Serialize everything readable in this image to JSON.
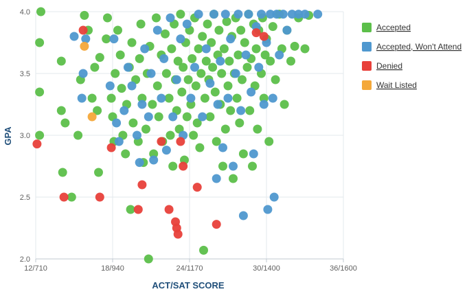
{
  "chart_data": {
    "type": "scatter",
    "title": "",
    "xlabel": "ACT/SAT SCORE",
    "ylabel": "GPA",
    "x_ticks": [
      "12/710",
      "18/940",
      "24/1170",
      "30/1400",
      "36/1600"
    ],
    "x_tick_values": [
      12,
      18,
      24,
      30,
      36
    ],
    "xlim": [
      12,
      36
    ],
    "y_ticks": [
      "2.0",
      "2.5",
      "3.0",
      "3.5",
      "4.0"
    ],
    "y_tick_values": [
      2.0,
      2.5,
      3.0,
      3.5,
      4.0
    ],
    "ylim": [
      2.0,
      4.0
    ],
    "grid": true,
    "legend_position": "right",
    "series": [
      {
        "name": "Accepted",
        "color": "#5cbf4a",
        "points": [
          [
            12.3,
            3.75
          ],
          [
            12.3,
            3.35
          ],
          [
            12.3,
            3.0
          ],
          [
            12.4,
            4.0
          ],
          [
            14.0,
            3.6
          ],
          [
            14.0,
            3.2
          ],
          [
            14.1,
            2.7
          ],
          [
            14.3,
            3.1
          ],
          [
            14.8,
            2.5
          ],
          [
            15.3,
            3.0
          ],
          [
            15.5,
            3.45
          ],
          [
            15.8,
            3.97
          ],
          [
            16.1,
            3.85
          ],
          [
            16.4,
            3.3
          ],
          [
            16.6,
            3.55
          ],
          [
            16.8,
            3.2
          ],
          [
            16.9,
            2.7
          ],
          [
            17.0,
            3.63
          ],
          [
            17.5,
            3.78
          ],
          [
            17.6,
            3.95
          ],
          [
            17.9,
            3.3
          ],
          [
            18.0,
            3.15
          ],
          [
            18.1,
            2.95
          ],
          [
            18.2,
            3.5
          ],
          [
            18.4,
            3.85
          ],
          [
            18.6,
            3.65
          ],
          [
            18.7,
            3.38
          ],
          [
            18.8,
            3.0
          ],
          [
            19.0,
            2.85
          ],
          [
            19.1,
            3.25
          ],
          [
            19.3,
            3.55
          ],
          [
            19.4,
            2.4
          ],
          [
            19.5,
            3.75
          ],
          [
            19.6,
            3.1
          ],
          [
            19.8,
            3.45
          ],
          [
            20.0,
            2.95
          ],
          [
            20.1,
            3.62
          ],
          [
            20.2,
            3.9
          ],
          [
            20.3,
            3.3
          ],
          [
            20.4,
            2.78
          ],
          [
            20.6,
            3.05
          ],
          [
            20.7,
            3.5
          ],
          [
            20.8,
            2.0
          ],
          [
            20.9,
            3.72
          ],
          [
            21.1,
            3.25
          ],
          [
            21.2,
            2.85
          ],
          [
            21.4,
            3.95
          ],
          [
            21.5,
            3.4
          ],
          [
            21.6,
            3.15
          ],
          [
            21.8,
            3.65
          ],
          [
            21.9,
            2.95
          ],
          [
            22.1,
            3.82
          ],
          [
            22.2,
            3.5
          ],
          [
            22.4,
            3.3
          ],
          [
            22.5,
            3.0
          ],
          [
            22.6,
            3.7
          ],
          [
            22.7,
            2.75
          ],
          [
            22.8,
            3.9
          ],
          [
            22.9,
            3.45
          ],
          [
            23.0,
            3.2
          ],
          [
            23.1,
            3.6
          ],
          [
            23.2,
            3.05
          ],
          [
            23.3,
            3.98
          ],
          [
            23.4,
            3.35
          ],
          [
            23.5,
            3.55
          ],
          [
            23.6,
            2.8
          ],
          [
            23.7,
            3.75
          ],
          [
            23.8,
            3.15
          ],
          [
            23.9,
            3.45
          ],
          [
            24.0,
            3.85
          ],
          [
            24.1,
            3.25
          ],
          [
            24.2,
            3.62
          ],
          [
            24.3,
            3.0
          ],
          [
            24.4,
            3.95
          ],
          [
            24.5,
            3.4
          ],
          [
            24.6,
            3.1
          ],
          [
            24.7,
            3.7
          ],
          [
            24.8,
            2.9
          ],
          [
            24.9,
            3.5
          ],
          [
            25.0,
            3.8
          ],
          [
            25.1,
            2.07
          ],
          [
            25.2,
            3.3
          ],
          [
            25.3,
            3.6
          ],
          [
            25.4,
            3.9
          ],
          [
            25.5,
            3.45
          ],
          [
            25.6,
            3.15
          ],
          [
            25.7,
            3.75
          ],
          [
            25.8,
            3.55
          ],
          [
            25.9,
            3.98
          ],
          [
            26.0,
            3.35
          ],
          [
            26.1,
            2.95
          ],
          [
            26.2,
            3.65
          ],
          [
            26.3,
            3.85
          ],
          [
            26.4,
            3.25
          ],
          [
            26.5,
            3.5
          ],
          [
            26.6,
            2.75
          ],
          [
            26.7,
            3.7
          ],
          [
            26.8,
            3.05
          ],
          [
            26.9,
            3.92
          ],
          [
            27.0,
            3.4
          ],
          [
            27.1,
            3.6
          ],
          [
            27.2,
            3.2
          ],
          [
            27.3,
            3.8
          ],
          [
            27.4,
            2.65
          ],
          [
            27.5,
            3.5
          ],
          [
            27.6,
            3.95
          ],
          [
            27.7,
            3.3
          ],
          [
            27.8,
            3.65
          ],
          [
            27.9,
            3.1
          ],
          [
            28.0,
            3.85
          ],
          [
            28.1,
            3.45
          ],
          [
            28.2,
            2.85
          ],
          [
            28.3,
            3.75
          ],
          [
            28.5,
            3.55
          ],
          [
            28.6,
            3.98
          ],
          [
            28.7,
            3.2
          ],
          [
            28.8,
            3.62
          ],
          [
            28.9,
            2.75
          ],
          [
            29.0,
            3.9
          ],
          [
            29.1,
            3.4
          ],
          [
            29.2,
            3.7
          ],
          [
            29.3,
            3.05
          ],
          [
            29.4,
            3.85
          ],
          [
            29.6,
            3.5
          ],
          [
            29.7,
            3.95
          ],
          [
            29.8,
            3.3
          ],
          [
            29.9,
            3.65
          ],
          [
            30.0,
            3.78
          ],
          [
            30.2,
            2.95
          ],
          [
            30.3,
            3.6
          ],
          [
            30.5,
            3.88
          ],
          [
            30.7,
            3.45
          ],
          [
            31.0,
            3.98
          ],
          [
            31.2,
            3.7
          ],
          [
            31.4,
            3.25
          ],
          [
            31.6,
            3.85
          ],
          [
            31.9,
            3.6
          ],
          [
            32.2,
            3.72
          ],
          [
            32.5,
            3.95
          ],
          [
            33.0,
            3.7
          ],
          [
            33.3,
            3.97
          ]
        ]
      },
      {
        "name": "Accepted, Won't Attend",
        "color": "#4f98cf",
        "points": [
          [
            15.0,
            3.8
          ],
          [
            15.6,
            3.3
          ],
          [
            15.7,
            3.5
          ],
          [
            15.9,
            3.78
          ],
          [
            17.8,
            3.4
          ],
          [
            18.1,
            3.78
          ],
          [
            18.3,
            3.1
          ],
          [
            18.5,
            2.95
          ],
          [
            18.9,
            3.2
          ],
          [
            19.2,
            3.55
          ],
          [
            19.5,
            3.4
          ],
          [
            19.9,
            3.0
          ],
          [
            20.1,
            2.78
          ],
          [
            20.3,
            3.25
          ],
          [
            20.5,
            3.7
          ],
          [
            20.8,
            3.15
          ],
          [
            21.0,
            3.5
          ],
          [
            21.2,
            2.8
          ],
          [
            21.5,
            3.85
          ],
          [
            21.8,
            3.3
          ],
          [
            22.0,
            3.62
          ],
          [
            22.2,
            2.88
          ],
          [
            22.5,
            3.95
          ],
          [
            22.7,
            3.15
          ],
          [
            23.0,
            3.45
          ],
          [
            23.3,
            3.78
          ],
          [
            23.5,
            3.0
          ],
          [
            23.8,
            3.9
          ],
          [
            24.1,
            3.3
          ],
          [
            24.4,
            3.55
          ],
          [
            24.7,
            3.98
          ],
          [
            25.0,
            3.15
          ],
          [
            25.3,
            3.7
          ],
          [
            25.6,
            3.42
          ],
          [
            25.9,
            3.98
          ],
          [
            26.1,
            2.65
          ],
          [
            26.2,
            3.25
          ],
          [
            26.4,
            3.6
          ],
          [
            26.6,
            2.9
          ],
          [
            26.8,
            3.98
          ],
          [
            27.0,
            3.3
          ],
          [
            27.2,
            3.78
          ],
          [
            27.4,
            2.75
          ],
          [
            27.6,
            3.5
          ],
          [
            27.8,
            3.98
          ],
          [
            28.0,
            3.2
          ],
          [
            28.2,
            2.35
          ],
          [
            28.4,
            3.65
          ],
          [
            28.6,
            3.98
          ],
          [
            28.8,
            3.35
          ],
          [
            29.0,
            2.85
          ],
          [
            29.2,
            3.88
          ],
          [
            29.4,
            3.55
          ],
          [
            29.6,
            3.98
          ],
          [
            29.8,
            3.25
          ],
          [
            30.0,
            3.75
          ],
          [
            30.1,
            2.4
          ],
          [
            30.3,
            3.98
          ],
          [
            30.5,
            3.3
          ],
          [
            30.6,
            2.5
          ],
          [
            30.8,
            3.98
          ],
          [
            31.0,
            3.65
          ],
          [
            31.3,
            3.98
          ],
          [
            31.6,
            3.85
          ],
          [
            32.0,
            3.98
          ],
          [
            32.5,
            3.98
          ],
          [
            33.0,
            3.98
          ],
          [
            34.0,
            3.98
          ]
        ]
      },
      {
        "name": "Denied",
        "color": "#e8403a",
        "points": [
          [
            12.1,
            2.93
          ],
          [
            14.2,
            2.5
          ],
          [
            15.7,
            3.85
          ],
          [
            17.0,
            2.5
          ],
          [
            17.9,
            2.9
          ],
          [
            20.0,
            2.4
          ],
          [
            20.3,
            2.6
          ],
          [
            21.8,
            2.95
          ],
          [
            22.4,
            2.4
          ],
          [
            22.9,
            2.3
          ],
          [
            23.0,
            2.25
          ],
          [
            23.1,
            2.2
          ],
          [
            23.3,
            2.95
          ],
          [
            23.5,
            2.75
          ],
          [
            24.6,
            2.58
          ],
          [
            26.1,
            2.28
          ],
          [
            29.2,
            3.83
          ],
          [
            29.8,
            3.8
          ]
        ]
      },
      {
        "name": "Wait Listed",
        "color": "#f4a83a",
        "points": [
          [
            15.8,
            3.72
          ],
          [
            16.4,
            3.15
          ]
        ]
      }
    ]
  }
}
